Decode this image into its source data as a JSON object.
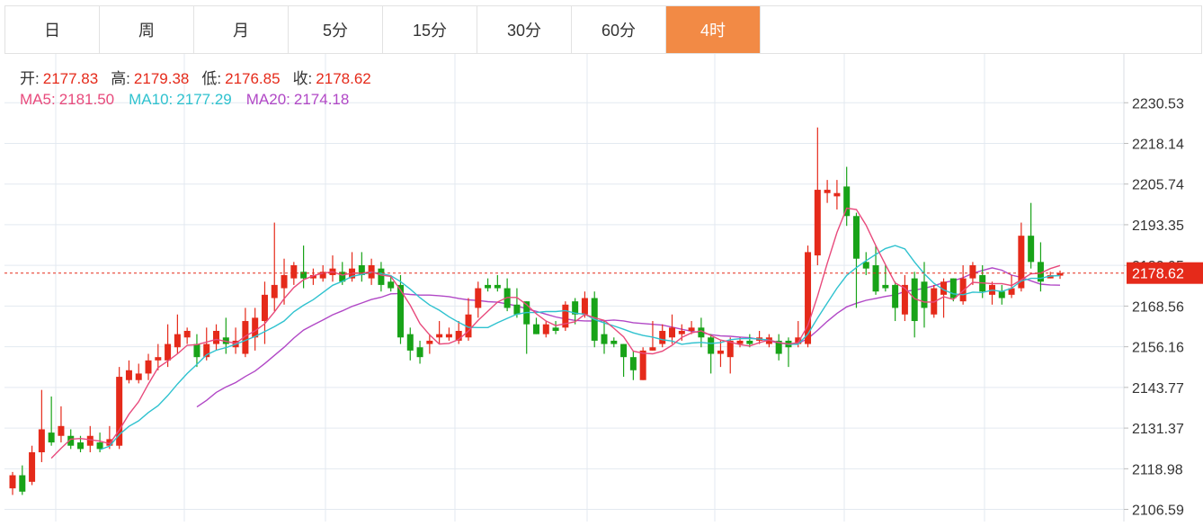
{
  "tabs": [
    {
      "label": "日",
      "active": false
    },
    {
      "label": "周",
      "active": false
    },
    {
      "label": "月",
      "active": false
    },
    {
      "label": "5分",
      "active": false
    },
    {
      "label": "15分",
      "active": false
    },
    {
      "label": "30分",
      "active": false
    },
    {
      "label": "60分",
      "active": false
    },
    {
      "label": "4时",
      "active": true
    }
  ],
  "ohlc_info": {
    "open_label": "开:",
    "open": "2177.83",
    "high_label": "高:",
    "high": "2179.38",
    "low_label": "低:",
    "low": "2176.85",
    "close_label": "收:",
    "close": "2178.62"
  },
  "ma_info": {
    "ma5_label": "MA5:",
    "ma5": "2181.50",
    "ma10_label": "MA10:",
    "ma10": "2177.29",
    "ma20_label": "MA20:",
    "ma20": "2174.18"
  },
  "colors": {
    "up": "#e52a1a",
    "down": "#18a318",
    "ma5": "#e84a7c",
    "ma10": "#2fc2cf",
    "ma20": "#b148c6",
    "accent": "#f28a45",
    "grid": "#e3e9f0"
  },
  "chart_data": {
    "type": "candlestick",
    "title": "",
    "y_ticks": [
      2230.53,
      2218.14,
      2205.74,
      2193.35,
      2180.95,
      2168.56,
      2156.16,
      2143.77,
      2131.37,
      2118.98,
      2106.59
    ],
    "ylim": [
      2102.9,
      2245.4
    ],
    "last_price": "2178.62",
    "grid": true,
    "candles": [
      [
        2113,
        2117,
        2111,
        2118
      ],
      [
        2117,
        2112,
        2111,
        2120
      ],
      [
        2115,
        2124,
        2114,
        2126
      ],
      [
        2124,
        2131,
        2121,
        2143
      ],
      [
        2130,
        2127,
        2126,
        2141
      ],
      [
        2129,
        2132,
        2127,
        2138
      ],
      [
        2129,
        2126,
        2125,
        2131
      ],
      [
        2127,
        2125,
        2124,
        2129
      ],
      [
        2126,
        2129,
        2124,
        2132
      ],
      [
        2127,
        2125,
        2124,
        2130
      ],
      [
        2126,
        2128,
        2125,
        2132
      ],
      [
        2126,
        2147,
        2125,
        2150
      ],
      [
        2146,
        2149,
        2145,
        2152
      ],
      [
        2146,
        2148,
        2145,
        2151
      ],
      [
        2148,
        2152,
        2146,
        2154
      ],
      [
        2152,
        2153,
        2149,
        2157
      ],
      [
        2152,
        2157,
        2150,
        2163
      ],
      [
        2156,
        2160,
        2154,
        2166
      ],
      [
        2159,
        2161,
        2157,
        2162
      ],
      [
        2157,
        2153,
        2150,
        2160
      ],
      [
        2153,
        2157,
        2152,
        2162
      ],
      [
        2157,
        2161,
        2155,
        2163
      ],
      [
        2159,
        2157,
        2154,
        2165
      ],
      [
        2156,
        2158,
        2154,
        2162
      ],
      [
        2154,
        2164,
        2153,
        2168
      ],
      [
        2159,
        2165,
        2155,
        2168
      ],
      [
        2164,
        2172,
        2157,
        2176
      ],
      [
        2171,
        2175,
        2167,
        2194
      ],
      [
        2174,
        2178,
        2169,
        2183
      ],
      [
        2177,
        2181,
        2175,
        2182
      ],
      [
        2179,
        2177,
        2174,
        2187
      ],
      [
        2177,
        2178,
        2175,
        2180
      ],
      [
        2177,
        2179,
        2176,
        2181
      ],
      [
        2178,
        2180,
        2176,
        2184
      ],
      [
        2179,
        2176,
        2175,
        2182
      ],
      [
        2177,
        2180,
        2176,
        2185
      ],
      [
        2181,
        2178,
        2176,
        2185
      ],
      [
        2177,
        2181,
        2175,
        2183
      ],
      [
        2180,
        2175,
        2173,
        2182
      ],
      [
        2176,
        2174,
        2173,
        2178
      ],
      [
        2175,
        2159,
        2157,
        2178
      ],
      [
        2160,
        2155,
        2152,
        2162
      ],
      [
        2156,
        2153,
        2151,
        2158
      ],
      [
        2157,
        2158,
        2154,
        2160
      ],
      [
        2159,
        2160,
        2157,
        2164
      ],
      [
        2159,
        2160,
        2158,
        2162
      ],
      [
        2158,
        2161,
        2157,
        2164
      ],
      [
        2159,
        2166,
        2158,
        2171
      ],
      [
        2168,
        2174,
        2165,
        2176
      ],
      [
        2175,
        2174,
        2173,
        2177
      ],
      [
        2175,
        2174,
        2173,
        2178
      ],
      [
        2174,
        2168,
        2167,
        2177
      ],
      [
        2169,
        2166,
        2165,
        2174
      ],
      [
        2170,
        2163,
        2154,
        2170
      ],
      [
        2163,
        2160,
        2160,
        2165
      ],
      [
        2160,
        2163,
        2159,
        2164
      ],
      [
        2162,
        2161,
        2160,
        2164
      ],
      [
        2162,
        2169,
        2161,
        2170
      ],
      [
        2170,
        2166,
        2163,
        2171
      ],
      [
        2166,
        2171,
        2165,
        2173
      ],
      [
        2171,
        2158,
        2156,
        2173
      ],
      [
        2160,
        2157,
        2154,
        2164
      ],
      [
        2158,
        2157,
        2156,
        2159
      ],
      [
        2157,
        2153,
        2147,
        2157
      ],
      [
        2153,
        2149,
        2146,
        2155
      ],
      [
        2146,
        2155,
        2146,
        2156
      ],
      [
        2155,
        2156,
        2155,
        2164
      ],
      [
        2157,
        2161,
        2156,
        2163
      ],
      [
        2159,
        2162,
        2157,
        2166
      ],
      [
        2160,
        2161,
        2158,
        2163
      ],
      [
        2161,
        2162,
        2160,
        2164
      ],
      [
        2162,
        2159,
        2156,
        2165
      ],
      [
        2159,
        2154,
        2148,
        2160
      ],
      [
        2154,
        2155,
        2150,
        2158
      ],
      [
        2153,
        2158,
        2148,
        2159
      ],
      [
        2157,
        2158,
        2156,
        2159
      ],
      [
        2158,
        2157,
        2156,
        2160
      ],
      [
        2158,
        2159,
        2157,
        2161
      ],
      [
        2157,
        2159,
        2156,
        2160
      ],
      [
        2158,
        2154,
        2152,
        2160
      ],
      [
        2158,
        2156,
        2150,
        2159
      ],
      [
        2157,
        2159,
        2156,
        2164
      ],
      [
        2157,
        2185,
        2156,
        2187
      ],
      [
        2184,
        2204,
        2181,
        2223
      ],
      [
        2203,
        2204,
        2200,
        2207
      ],
      [
        2202,
        2203,
        2198,
        2207
      ],
      [
        2205,
        2196,
        2193,
        2211
      ],
      [
        2196,
        2183,
        2168,
        2197
      ],
      [
        2182,
        2180,
        2178,
        2185
      ],
      [
        2181,
        2173,
        2172,
        2187
      ],
      [
        2175,
        2174,
        2173,
        2181
      ],
      [
        2175,
        2168,
        2164,
        2176
      ],
      [
        2166,
        2175,
        2164,
        2178
      ],
      [
        2177,
        2164,
        2159,
        2179
      ],
      [
        2176,
        2168,
        2162,
        2182
      ],
      [
        2166,
        2174,
        2165,
        2175
      ],
      [
        2172,
        2176,
        2165,
        2177
      ],
      [
        2177,
        2171,
        2170,
        2177
      ],
      [
        2170,
        2177,
        2169,
        2181
      ],
      [
        2177,
        2181,
        2175,
        2182
      ],
      [
        2178,
        2173,
        2171,
        2181
      ],
      [
        2172,
        2175,
        2169,
        2176
      ],
      [
        2173,
        2171,
        2169,
        2175
      ],
      [
        2172,
        2174,
        2171,
        2178
      ],
      [
        2174,
        2190,
        2173,
        2194
      ],
      [
        2190,
        2182,
        2180,
        2200
      ],
      [
        2182,
        2176,
        2173,
        2188
      ],
      [
        2177,
        2178,
        2177,
        2179
      ],
      [
        2177.83,
        2178.62,
        2176.85,
        2179.38
      ]
    ],
    "ma5_last": 2181.5,
    "ma10_last": 2177.29,
    "ma20_last": 2174.18
  }
}
